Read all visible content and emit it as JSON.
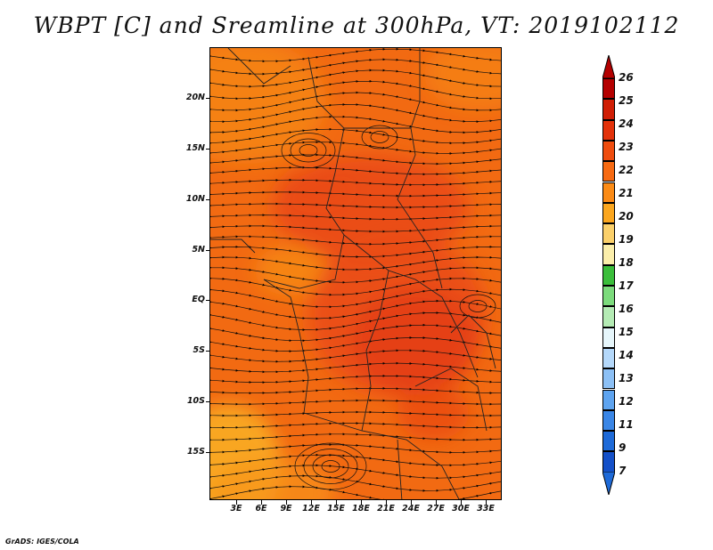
{
  "title": "WBPT [C] and Sreamline at 300hPa, VT: 2019102112",
  "footer": "GrADS: IGES/COLA",
  "y_axis": {
    "labels": [
      "20N",
      "15N",
      "10N",
      "5N",
      "EQ",
      "5S",
      "10S",
      "15S"
    ],
    "lat_values": [
      20,
      15,
      10,
      5,
      0,
      -5,
      -10,
      -15
    ],
    "range": [
      -20,
      25
    ]
  },
  "x_axis": {
    "labels": [
      "3E",
      "6E",
      "9E",
      "12E",
      "15E",
      "18E",
      "21E",
      "24E",
      "27E",
      "30E",
      "33E"
    ],
    "lon_values": [
      3,
      6,
      9,
      12,
      15,
      18,
      21,
      24,
      27,
      30,
      33
    ],
    "range": [
      0,
      35
    ]
  },
  "colorbar": {
    "levels": [
      "26",
      "25",
      "24",
      "23",
      "22",
      "21",
      "20",
      "19",
      "18",
      "17",
      "16",
      "15",
      "14",
      "13",
      "12",
      "11",
      "9",
      "7"
    ],
    "colors": [
      "#b40000",
      "#d01e05",
      "#e3320a",
      "#ef4d0f",
      "#f76a12",
      "#fb8b16",
      "#fba61e",
      "#fbd06a",
      "#fbeeaa",
      "#3bbe3b",
      "#7cdb7c",
      "#b4ebb4",
      "#e6f6fb",
      "#b4d8fa",
      "#8cc0f5",
      "#5ea4f0",
      "#3a86e6",
      "#1e6ad8",
      "#1450c8"
    ],
    "top_arrow_color": "#b40000",
    "bottom_arrow_color": "#1e6ad8"
  },
  "map_colors": {
    "base": "#f26a12",
    "warm": "#ea4b14",
    "hot": "#e23c16",
    "cool": "#f89418",
    "coolest": "#f9aa22"
  }
}
